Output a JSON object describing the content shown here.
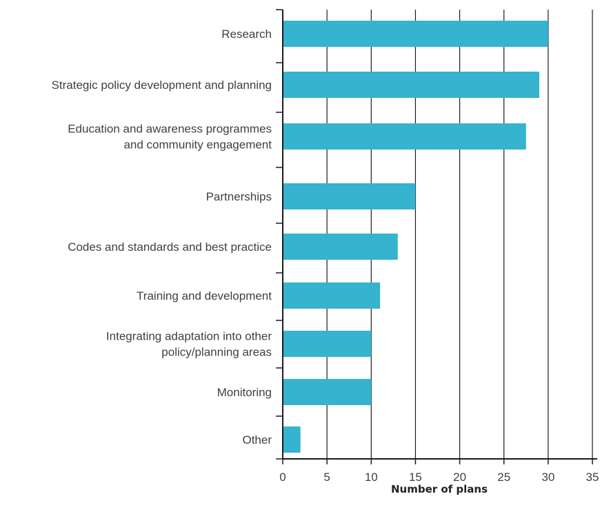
{
  "chart_data": {
    "type": "bar",
    "orientation": "horizontal",
    "categories": [
      [
        "Research"
      ],
      [
        "Strategic policy development and planning"
      ],
      [
        "Education and awareness programmes",
        "and community engagement"
      ],
      [
        "Partnerships"
      ],
      [
        "Codes and standards and best practice"
      ],
      [
        "Training and development"
      ],
      [
        "Integrating adaptation into other",
        "policy/planning areas"
      ],
      [
        "Monitoring"
      ],
      [
        "Other"
      ]
    ],
    "values": [
      30,
      29,
      27.5,
      15,
      13,
      11,
      10,
      10,
      2
    ],
    "xlabel": "Number of plans",
    "xlim": [
      0,
      35
    ],
    "xticks": [
      0,
      5,
      10,
      15,
      20,
      25,
      30,
      35
    ],
    "grid": "vertical",
    "bar_color": "#35b3cf"
  }
}
